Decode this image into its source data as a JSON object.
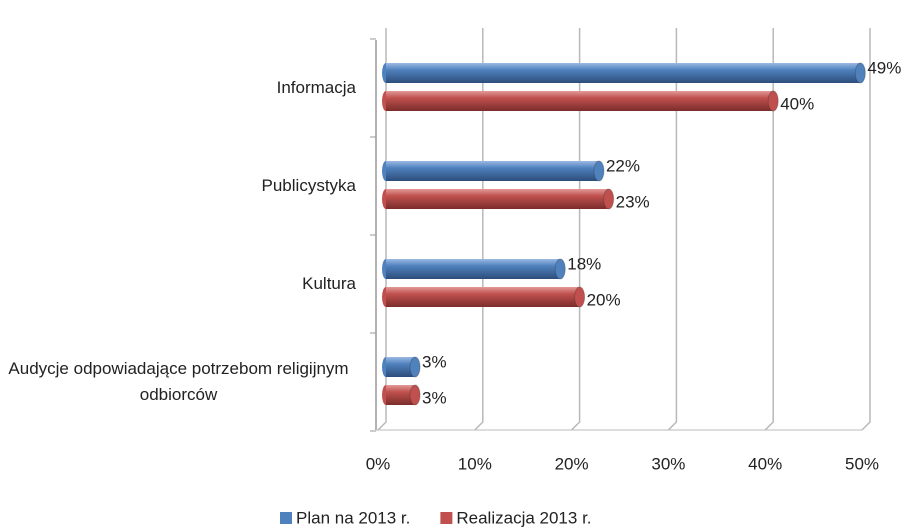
{
  "chart_data": {
    "type": "bar",
    "orientation": "horizontal",
    "categories": [
      "Informacja",
      "Publicystyka",
      "Kultura",
      "Audycje odpowiadające potrzebom religijnym odbiorców"
    ],
    "series": [
      {
        "name": "Plan na 2013 r.",
        "color": "#4f81bd",
        "values": [
          49,
          22,
          18,
          3
        ],
        "value_labels": [
          "49%",
          "22%",
          "18%",
          "3%"
        ]
      },
      {
        "name": "Realizacja 2013 r.",
        "color": "#c0504d",
        "values": [
          40,
          23,
          20,
          3
        ],
        "value_labels": [
          "40%",
          "23%",
          "20%",
          "3%"
        ]
      }
    ],
    "xlim": [
      0,
      50
    ],
    "xticks": [
      {
        "value": 0,
        "label": "0%"
      },
      {
        "value": 10,
        "label": "10%"
      },
      {
        "value": 20,
        "label": "20%"
      },
      {
        "value": 30,
        "label": "30%"
      },
      {
        "value": 40,
        "label": "40%"
      },
      {
        "value": 50,
        "label": "50%"
      }
    ],
    "grid": true,
    "legend": "bottom"
  }
}
